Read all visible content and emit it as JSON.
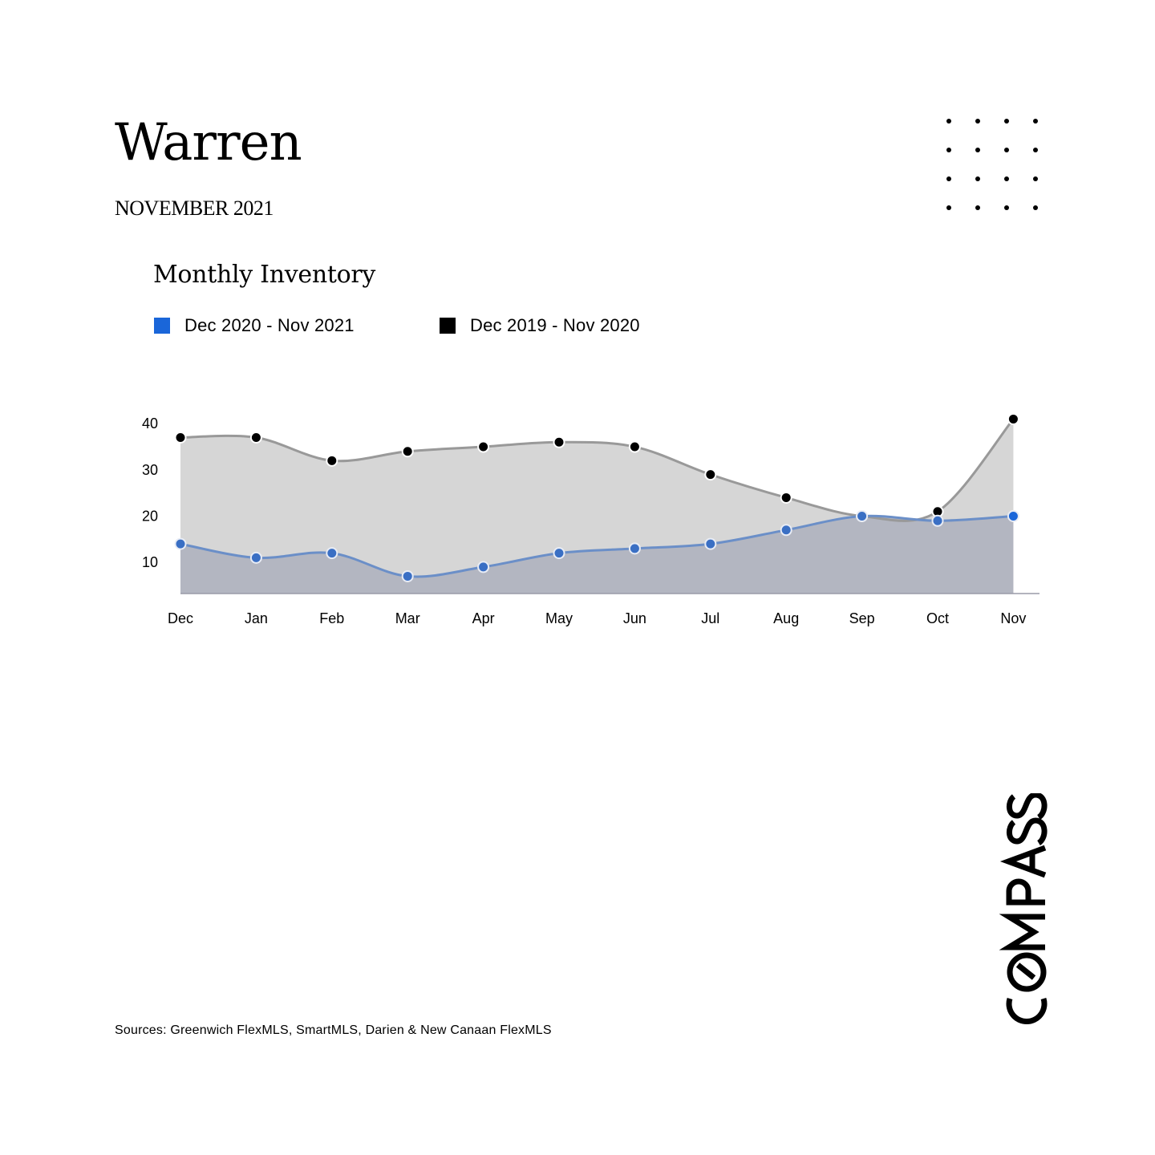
{
  "page": {
    "title": "Warren",
    "subtitle": "NOVEMBER 2021",
    "sources": "Sources: Greenwich FlexMLS, SmartMLS, Darien & New Canaan FlexMLS",
    "brand": "COMPASS"
  },
  "colors": {
    "current_series": "#1a66d9",
    "previous_series": "#000000",
    "current_line": "#6b8fc8",
    "previous_line": "#999999",
    "previous_fill": "#d6d6d6",
    "current_fill": "#b3b6c1"
  },
  "icons": {
    "decoration": "dot-grid-icon"
  },
  "chart_data": {
    "type": "area",
    "title": "Monthly Inventory",
    "categories": [
      "Dec",
      "Jan",
      "Feb",
      "Mar",
      "Apr",
      "May",
      "Jun",
      "Jul",
      "Aug",
      "Sep",
      "Oct",
      "Nov"
    ],
    "series": [
      {
        "name": "Dec 2020 - Nov 2021",
        "values": [
          14,
          11,
          12,
          7,
          9,
          12,
          13,
          14,
          17,
          20,
          19,
          20
        ]
      },
      {
        "name": "Dec 2019 - Nov 2020",
        "values": [
          37,
          37,
          32,
          34,
          35,
          36,
          35,
          29,
          24,
          20,
          21,
          41
        ]
      }
    ],
    "yticks": [
      10,
      20,
      30,
      40
    ],
    "ylim": [
      3,
      43
    ],
    "grid": false,
    "legend": "top-left"
  }
}
